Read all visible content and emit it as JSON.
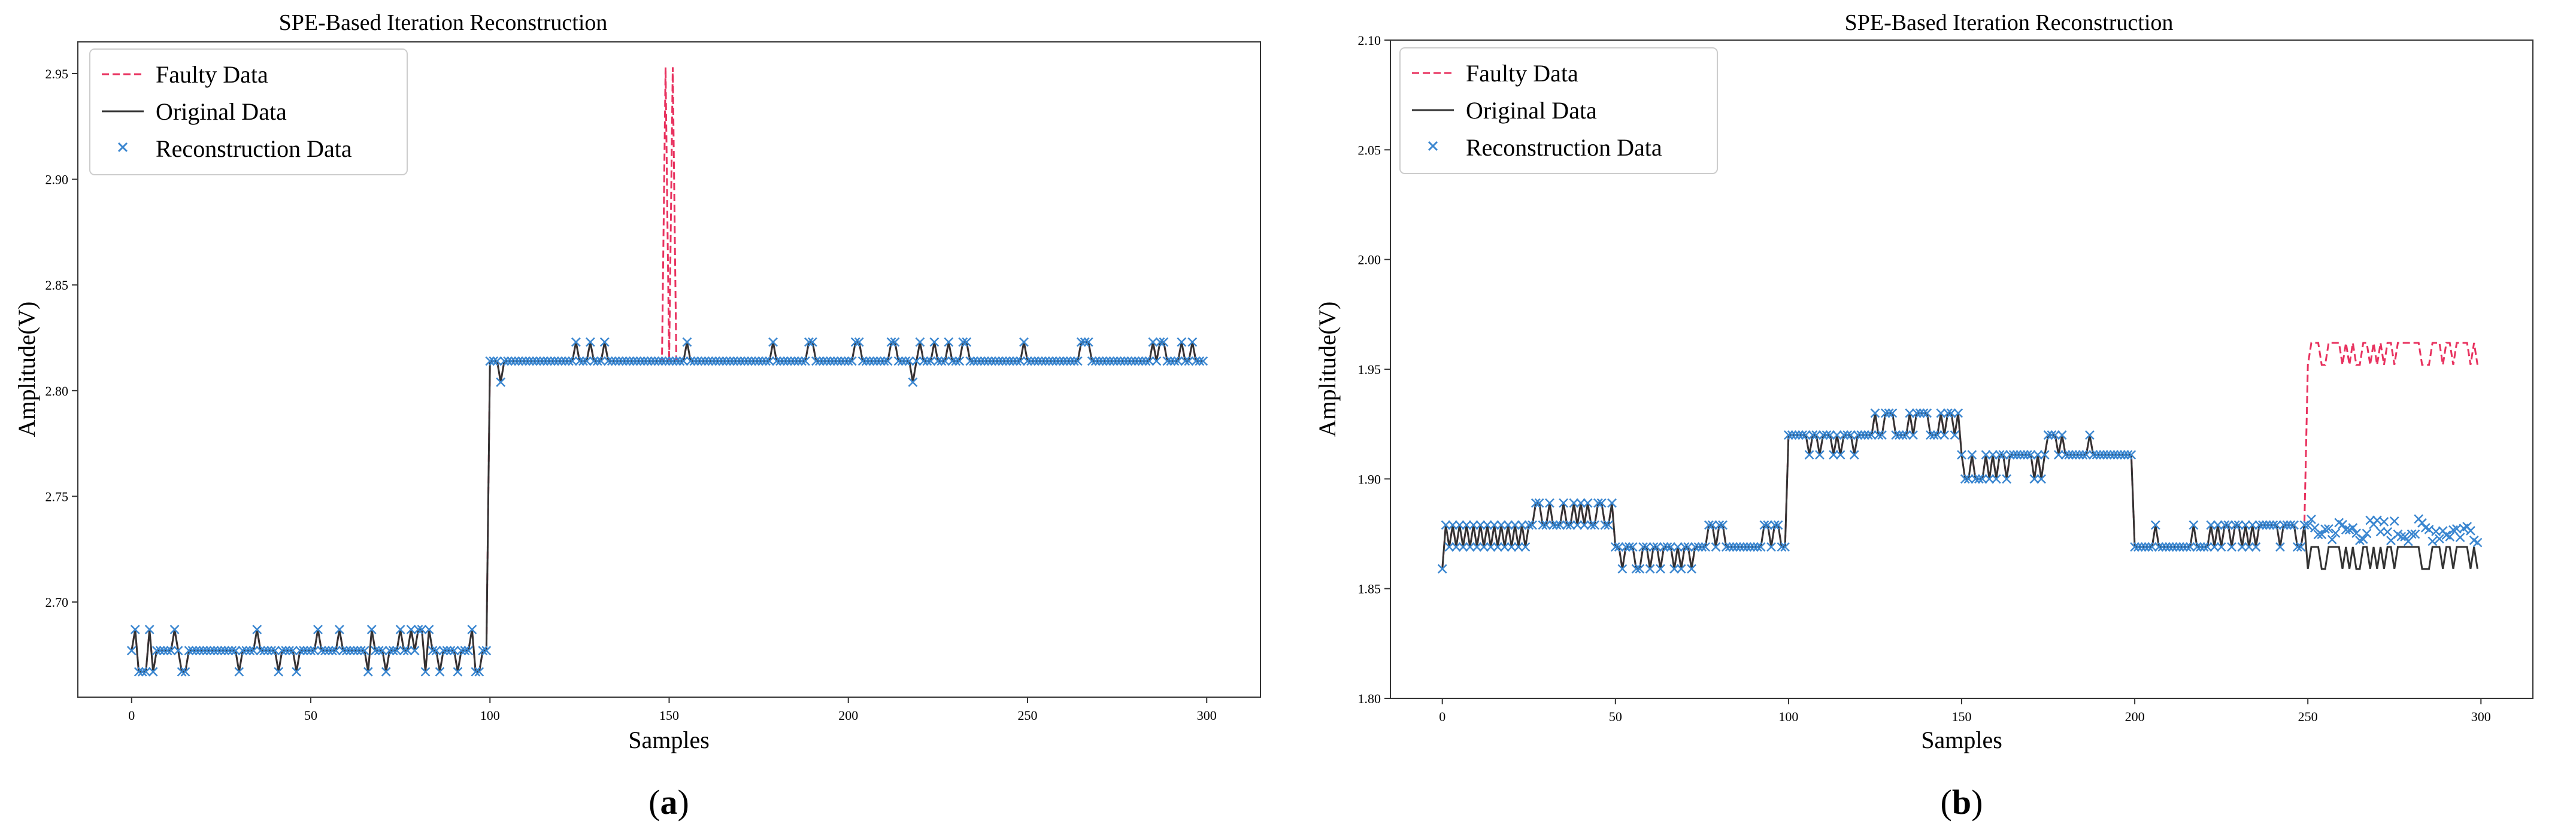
{
  "chart_data": [
    {
      "type": "line",
      "panel_label": "a",
      "title": "SPE-Based Iteration Reconstruction",
      "xlabel": "Samples",
      "ylabel": "Amplitude(V)",
      "xlim": [
        -15,
        315
      ],
      "ylim": [
        2.655,
        2.965
      ],
      "x_ticks": [
        0,
        50,
        100,
        150,
        200,
        250,
        300
      ],
      "y_ticks": [
        2.7,
        2.75,
        2.8,
        2.85,
        2.9,
        2.95
      ],
      "x_tick_labels": [
        "0",
        "50",
        "100",
        "150",
        "200",
        "250",
        "300"
      ],
      "y_tick_labels": [
        "2.70",
        "2.75",
        "2.80",
        "2.85",
        "2.90",
        "2.95"
      ],
      "legend_position": "top-left",
      "n_samples": 300,
      "series": [
        {
          "name": "Faulty Data",
          "style": "dashed",
          "color": "#e8325f",
          "description": "Equal to original except a spike near sample 150",
          "segments": [
            {
              "x_start": 0,
              "x_end": 99,
              "baseline": 2.677,
              "alternate": 2.667,
              "upper": 2.687
            },
            {
              "x_start": 100,
              "x_end": 299,
              "baseline": 2.814,
              "alternate": 2.804,
              "upper": 2.823
            }
          ],
          "spike": {
            "x": [
              148,
              149,
              150,
              151,
              152
            ],
            "values": [
              2.814,
              2.953,
              2.814,
              2.953,
              2.814
            ]
          }
        },
        {
          "name": "Original Data",
          "style": "solid",
          "color": "#333333",
          "segments": [
            {
              "x_start": 0,
              "x_end": 99,
              "baseline": 2.677,
              "low_dips": [
                2,
                3,
                4,
                6,
                14,
                15,
                30,
                41,
                46,
                66,
                71,
                82,
                86,
                91,
                96,
                97
              ],
              "high_spikes": [
                1,
                5,
                12,
                35,
                52,
                58,
                67,
                75,
                78,
                80,
                81,
                83,
                95
              ]
            },
            {
              "x_start": 100,
              "x_end": 299,
              "baseline": 2.814,
              "low_dips": [
                103,
                218
              ],
              "high_spikes": [
                124,
                128,
                132,
                155,
                179,
                189,
                190,
                202,
                203,
                212,
                213,
                220,
                224,
                228,
                232,
                233,
                249,
                265,
                266,
                267,
                285,
                287,
                288,
                293,
                296
              ]
            }
          ]
        },
        {
          "name": "Reconstruction Data",
          "style": "marker-x",
          "color": "#3a86d0",
          "description": "Reconstructed samples coincide with the original data at every sample"
        }
      ]
    },
    {
      "type": "line",
      "panel_label": "b",
      "title": "SPE-Based Iteration Reconstruction",
      "xlabel": "Samples",
      "ylabel": "Amplitude(V)",
      "xlim": [
        -15,
        315
      ],
      "ylim": [
        1.8,
        2.1
      ],
      "x_ticks": [
        0,
        50,
        100,
        150,
        200,
        250,
        300
      ],
      "y_ticks": [
        1.8,
        1.85,
        1.9,
        1.95,
        2.0,
        2.05,
        2.1
      ],
      "x_tick_labels": [
        "0",
        "50",
        "100",
        "150",
        "200",
        "250",
        "300"
      ],
      "y_tick_labels": [
        "1.80",
        "1.85",
        "1.90",
        "1.95",
        "2.00",
        "2.05",
        "2.10"
      ],
      "legend_position": "top-left",
      "n_samples": 300,
      "series": [
        {
          "name": "Faulty Data",
          "style": "dashed",
          "color": "#e8325f",
          "description": "Equal to original until sample 250, then offset upward by about 0.09",
          "fault_start": 250,
          "fault_offset": 0.093
        },
        {
          "name": "Original Data",
          "style": "solid",
          "color": "#333333",
          "levels": [
            {
              "x_start": 0,
              "x_end": 24,
              "baseline": 1.869,
              "upper_run": 1.879
            },
            {
              "x_start": 25,
              "x_end": 49,
              "baseline": 1.879,
              "alternate": 1.889
            },
            {
              "x_start": 50,
              "x_end": 74,
              "baseline": 1.869,
              "alternate": 1.859
            },
            {
              "x_start": 75,
              "x_end": 99,
              "baseline": 1.869,
              "alternate": 1.879
            },
            {
              "x_start": 100,
              "x_end": 124,
              "baseline": 1.92,
              "alternate": 1.911
            },
            {
              "x_start": 125,
              "x_end": 149,
              "baseline": 1.92,
              "alternate": 1.93
            },
            {
              "x_start": 150,
              "x_end": 174,
              "baseline": 1.911,
              "alternate": 1.9
            },
            {
              "x_start": 175,
              "x_end": 199,
              "baseline": 1.911,
              "alternate": 1.92
            },
            {
              "x_start": 200,
              "x_end": 224,
              "baseline": 1.869,
              "alternate": 1.879
            },
            {
              "x_start": 225,
              "x_end": 249,
              "baseline": 1.879,
              "alternate": 1.869
            },
            {
              "x_start": 250,
              "x_end": 299,
              "baseline": 1.869,
              "alternate": 1.859
            }
          ]
        },
        {
          "name": "Reconstruction Data",
          "style": "marker-x",
          "color": "#3a86d0",
          "description": "Matches the original up to sample 250, then scatters around 1.875 (about 1.868 to 1.885)"
        }
      ]
    }
  ]
}
